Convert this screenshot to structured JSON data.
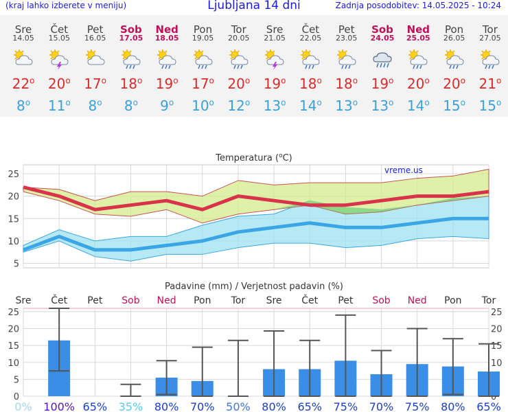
{
  "header": {
    "left_note": "(kraj lahko izberete v meniju)",
    "title": "Ljubljana 14 dni",
    "updated": "Zadnja posodobitev: 14.05.2025 - 10:24"
  },
  "days": [
    {
      "name": "Sre",
      "date": "14.05",
      "weekend": false,
      "icon": "sun-cloud-icon",
      "tmax": "22",
      "tmin": "8"
    },
    {
      "name": "Čet",
      "date": "15.05",
      "weekend": false,
      "icon": "sun-cloud-thunder-icon",
      "tmax": "20",
      "tmin": "11"
    },
    {
      "name": "Pet",
      "date": "16.05",
      "weekend": false,
      "icon": "partly-cloudy-icon",
      "tmax": "17",
      "tmin": "8"
    },
    {
      "name": "Sob",
      "date": "17.05",
      "weekend": true,
      "icon": "sun-cloud-rain-icon",
      "tmax": "18",
      "tmin": "8"
    },
    {
      "name": "Ned",
      "date": "18.05",
      "weekend": true,
      "icon": "sun-cloud-rain-icon",
      "tmax": "19",
      "tmin": "9"
    },
    {
      "name": "Pon",
      "date": "19.05",
      "weekend": false,
      "icon": "sun-cloud-rain-icon",
      "tmax": "17",
      "tmin": "10"
    },
    {
      "name": "Tor",
      "date": "20.05",
      "weekend": false,
      "icon": "sun-cloud-rain-icon",
      "tmax": "20",
      "tmin": "12"
    },
    {
      "name": "Sre",
      "date": "21.05",
      "weekend": false,
      "icon": "sun-cloud-thunder-icon",
      "tmax": "19",
      "tmin": "13"
    },
    {
      "name": "Čet",
      "date": "22.05",
      "weekend": false,
      "icon": "sun-cloud-rain-icon",
      "tmax": "18",
      "tmin": "14"
    },
    {
      "name": "Pet",
      "date": "23.05",
      "weekend": false,
      "icon": "sun-cloud-rain-icon",
      "tmax": "18",
      "tmin": "13"
    },
    {
      "name": "Sob",
      "date": "24.05",
      "weekend": true,
      "icon": "cloud-rain-icon",
      "tmax": "19",
      "tmin": "13"
    },
    {
      "name": "Ned",
      "date": "25.05",
      "weekend": true,
      "icon": "sun-cloud-rain-icon",
      "tmax": "20",
      "tmin": "14"
    },
    {
      "name": "Pon",
      "date": "26.05",
      "weekend": false,
      "icon": "sun-cloud-rain-icon",
      "tmax": "20",
      "tmin": "15"
    },
    {
      "name": "Tor",
      "date": "27.05",
      "weekend": false,
      "icon": "sun-cloud-rain-icon",
      "tmax": "21",
      "tmin": "15"
    }
  ],
  "degree_symbol": "o",
  "chart_data": [
    {
      "type": "line",
      "title": "Temperatura (oC)",
      "title_main": "Temperatura (",
      "title_sup": "o",
      "title_end": "C)",
      "watermark": "vreme.us",
      "ylim": [
        4,
        27
      ],
      "yticks": [
        "5",
        "10",
        "15",
        "20",
        "25"
      ],
      "series": [
        {
          "values": [
            22,
            20,
            17,
            18,
            19,
            17,
            20,
            19,
            18,
            18,
            19,
            20,
            20,
            21
          ],
          "color": "#d8334a"
        },
        {
          "values": [
            8,
            11,
            8,
            8,
            9,
            10,
            12,
            13,
            14,
            13,
            13,
            14,
            15,
            15
          ],
          "color": "#3aa6e6"
        }
      ],
      "max_band_high": [
        22,
        21.5,
        19,
        21,
        21,
        20,
        23.5,
        22.5,
        23,
        23,
        23,
        24,
        24.5,
        26
      ],
      "max_band_low": [
        21,
        19,
        16,
        15.5,
        17,
        14,
        16,
        17,
        18,
        16,
        16.5,
        18,
        19,
        20
      ],
      "min_band_high": [
        9,
        12.5,
        10,
        11,
        11,
        13.5,
        15.5,
        16,
        19,
        17.5,
        17,
        18,
        19.5,
        20
      ],
      "min_band_low": [
        7.5,
        10,
        6.5,
        5.5,
        7,
        7,
        8.5,
        9.5,
        9.5,
        8.5,
        9,
        10.5,
        11,
        10.5
      ]
    },
    {
      "type": "bar",
      "title": "Padavine (mm) / Verjetnost padavin (%)",
      "categories": [
        "Sre",
        "Čet",
        "Pet",
        "Sob",
        "Ned",
        "Pon",
        "Tor",
        "Sre",
        "Čet",
        "Pet",
        "Sob",
        "Ned",
        "Pon",
        "Tor"
      ],
      "weekend": [
        false,
        false,
        false,
        true,
        true,
        false,
        false,
        false,
        false,
        false,
        true,
        true,
        false,
        false
      ],
      "ylim": [
        0,
        26
      ],
      "yticks": [
        "0",
        "5",
        "10",
        "15",
        "20",
        "25"
      ],
      "values": [
        0,
        16.5,
        0,
        0.1,
        5.5,
        4.5,
        0,
        8,
        8,
        10.5,
        6.5,
        9.5,
        8.8,
        7.3
      ],
      "err_high": [
        0,
        26,
        0,
        3.5,
        10.5,
        14.5,
        16.5,
        19.3,
        16.5,
        24,
        13.5,
        20,
        17,
        15.5
      ],
      "err_low": [
        0,
        7.5,
        0,
        0,
        0.5,
        0,
        0,
        0,
        0,
        0,
        0,
        0,
        0.5,
        0
      ],
      "probability": [
        "0%",
        "100%",
        "65%",
        "35%",
        "80%",
        "70%",
        "50%",
        "80%",
        "65%",
        "75%",
        "70%",
        "75%",
        "80%",
        "65%"
      ],
      "prob_colors": [
        "#9fd8f0",
        "#5a10c8",
        "#1a40c8",
        "#5ac8ea",
        "#1a40c8",
        "#1a40c8",
        "#3a78e0",
        "#1a40c8",
        "#1a40c8",
        "#1a40c8",
        "#1a40c8",
        "#1a40c8",
        "#1a40c8",
        "#1a40c8"
      ],
      "bar_color": "#3a8ee6"
    }
  ]
}
